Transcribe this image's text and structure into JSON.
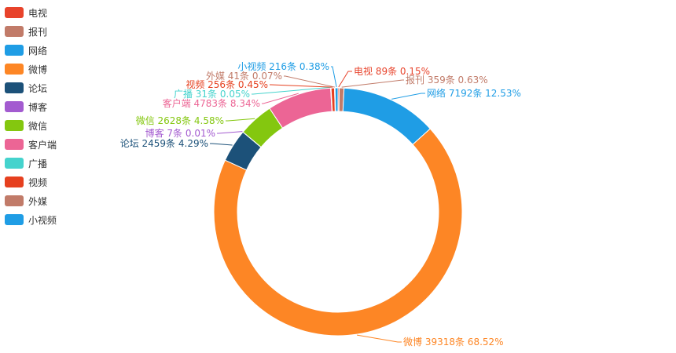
{
  "chart_data": {
    "type": "pie",
    "variant": "donut",
    "legend_position": "top-left",
    "slices": [
      {
        "name": "电视",
        "count": 89,
        "unit": "条",
        "percent": "0.15%",
        "color": "#e8432b"
      },
      {
        "name": "报刊",
        "count": 359,
        "unit": "条",
        "percent": "0.63%",
        "color": "#c17b69"
      },
      {
        "name": "网络",
        "count": 7192,
        "unit": "条",
        "percent": "12.53%",
        "color": "#1f9de5"
      },
      {
        "name": "微博",
        "count": 39318,
        "unit": "条",
        "percent": "68.52%",
        "color": "#fd8625"
      },
      {
        "name": "论坛",
        "count": 2459,
        "unit": "条",
        "percent": "4.29%",
        "color": "#1c5179"
      },
      {
        "name": "博客",
        "count": 7,
        "unit": "条",
        "percent": "0.01%",
        "color": "#a35bd0"
      },
      {
        "name": "微信",
        "count": 2628,
        "unit": "条",
        "percent": "4.58%",
        "color": "#84c70f"
      },
      {
        "name": "客户端",
        "count": 4783,
        "unit": "条",
        "percent": "8.34%",
        "color": "#ec6595"
      },
      {
        "name": "广播",
        "count": 31,
        "unit": "条",
        "percent": "0.05%",
        "color": "#45d3cd"
      },
      {
        "name": "视频",
        "count": 256,
        "unit": "条",
        "percent": "0.45%",
        "color": "#e6401f"
      },
      {
        "name": "外媒",
        "count": 41,
        "unit": "条",
        "percent": "0.07%",
        "color": "#c17b69"
      },
      {
        "name": "小视频",
        "count": 216,
        "unit": "条",
        "percent": "0.38%",
        "color": "#1f9de5"
      }
    ]
  }
}
